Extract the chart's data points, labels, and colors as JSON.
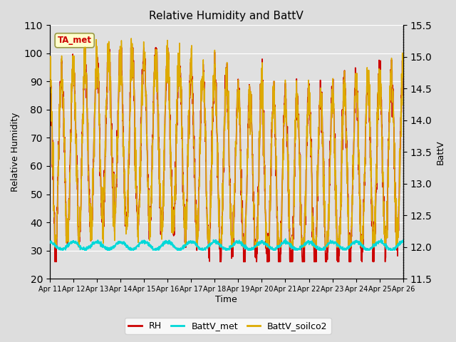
{
  "title": "Relative Humidity and BattV",
  "xlabel": "Time",
  "ylabel_left": "Relative Humidity",
  "ylabel_right": "BattV",
  "xlim": [
    0,
    15
  ],
  "ylim_left": [
    20,
    110
  ],
  "ylim_right": [
    11.5,
    15.5
  ],
  "yticks_left": [
    20,
    30,
    40,
    50,
    60,
    70,
    80,
    90,
    100,
    110
  ],
  "yticks_right": [
    11.5,
    12.0,
    12.5,
    13.0,
    13.5,
    14.0,
    14.5,
    15.0,
    15.5
  ],
  "xtick_labels": [
    "Apr 11",
    "Apr 12",
    "Apr 13",
    "Apr 14",
    "Apr 15",
    "Apr 16",
    "Apr 17",
    "Apr 18",
    "Apr 19",
    "Apr 20",
    "Apr 21",
    "Apr 22",
    "Apr 23",
    "Apr 24",
    "Apr 25",
    "Apr 26"
  ],
  "color_RH": "#cc0000",
  "color_BattV_met": "#00d8d8",
  "color_BattV_soilco2": "#ddaa00",
  "legend_label_RH": "RH",
  "legend_label_BattV_met": "BattV_met",
  "legend_label_BattV_soilco2": "BattV_soilco2",
  "annotation_text": "TA_met",
  "annotation_color": "#cc0000",
  "annotation_bg": "#ffffcc",
  "annotation_edge": "#999944",
  "bg_color": "#dddddd",
  "plot_bg_light": "#f2f2f2",
  "plot_bg_dark": "#e0e0e0",
  "grid_color": "#ffffff",
  "linewidth_RH": 1.2,
  "linewidth_batt": 1.1
}
